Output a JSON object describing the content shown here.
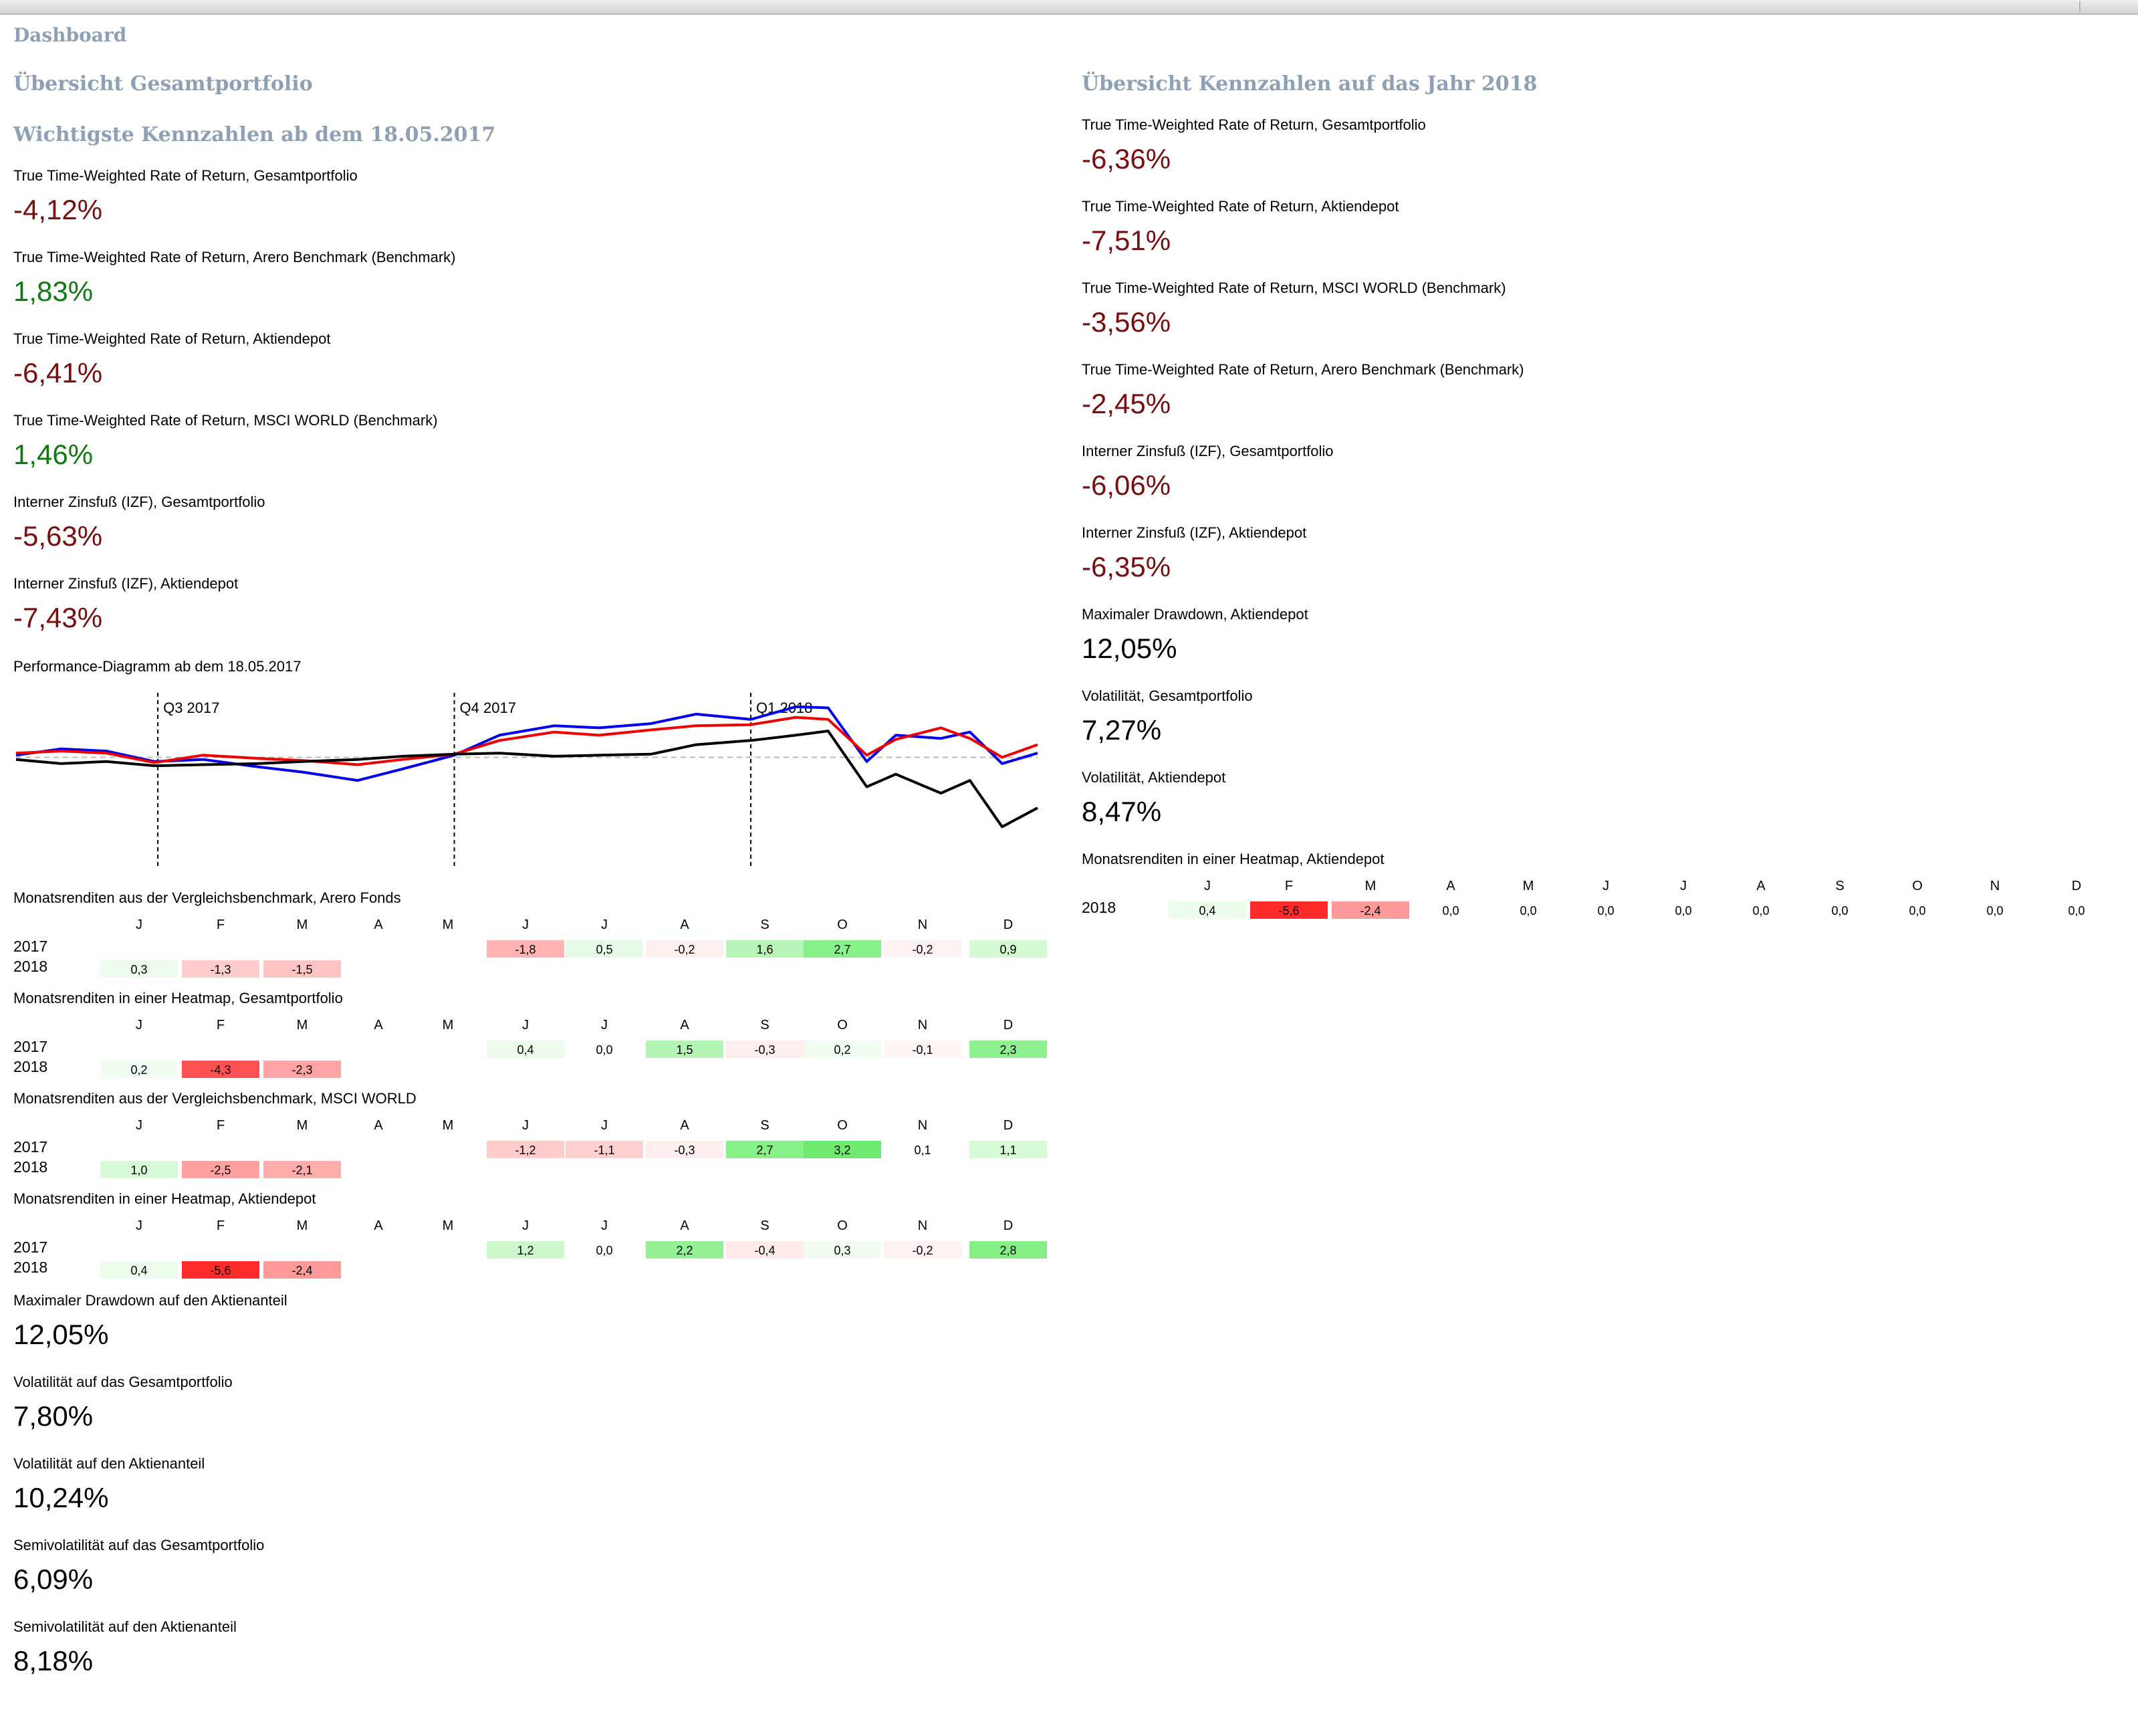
{
  "title": "Dashboard",
  "left": {
    "section_title": "Übersicht Gesamtportfolio",
    "subsection_title": "Wichtigste Kennzahlen ab dem 18.05.2017",
    "kpis": [
      {
        "label": "True Time-Weighted Rate of Return, Gesamtportfolio",
        "value": "-4,12%",
        "tone": "neg"
      },
      {
        "label": "True Time-Weighted Rate of Return, Arero Benchmark (Benchmark)",
        "value": "1,83%",
        "tone": "pos"
      },
      {
        "label": "True Time-Weighted Rate of Return, Aktiendepot",
        "value": "-6,41%",
        "tone": "neg"
      },
      {
        "label": "True Time-Weighted Rate of Return, MSCI WORLD (Benchmark)",
        "value": "1,46%",
        "tone": "pos"
      },
      {
        "label": "Interner Zinsfuß (IZF), Gesamtportfolio",
        "value": "-5,63%",
        "tone": "neg"
      },
      {
        "label": "Interner Zinsfuß (IZF), Aktiendepot",
        "value": "-7,43%",
        "tone": "neg"
      }
    ],
    "chart_title": "Performance-Diagramm ab dem 18.05.2017",
    "bottom_kpis": [
      {
        "label": "Maximaler Drawdown auf den Aktienanteil",
        "value": "12,05%",
        "tone": "neu"
      },
      {
        "label": "Volatilität auf das Gesamtportfolio",
        "value": "7,80%",
        "tone": "neu"
      },
      {
        "label": "Volatilität auf den Aktienanteil",
        "value": "10,24%",
        "tone": "neu"
      },
      {
        "label": "Semivolatilität auf das Gesamtportfolio",
        "value": "6,09%",
        "tone": "neu"
      },
      {
        "label": "Semivolatilität auf den Aktienanteil",
        "value": "8,18%",
        "tone": "neu"
      }
    ]
  },
  "right": {
    "section_title": "Übersicht Kennzahlen auf das Jahr 2018",
    "kpis": [
      {
        "label": "True Time-Weighted Rate of Return, Gesamtportfolio",
        "value": "-6,36%",
        "tone": "neg"
      },
      {
        "label": "True Time-Weighted Rate of Return, Aktiendepot",
        "value": "-7,51%",
        "tone": "neg"
      },
      {
        "label": "True Time-Weighted Rate of Return, MSCI WORLD (Benchmark)",
        "value": "-3,56%",
        "tone": "neg"
      },
      {
        "label": "True Time-Weighted Rate of Return, Arero Benchmark (Benchmark)",
        "value": "-2,45%",
        "tone": "neg"
      },
      {
        "label": "Interner Zinsfuß (IZF), Gesamtportfolio",
        "value": "-6,06%",
        "tone": "neg"
      },
      {
        "label": "Interner Zinsfuß (IZF), Aktiendepot",
        "value": "-6,35%",
        "tone": "neg"
      },
      {
        "label": "Maximaler Drawdown, Aktiendepot",
        "value": "12,05%",
        "tone": "neu"
      },
      {
        "label": "Volatilität, Gesamtportfolio",
        "value": "7,27%",
        "tone": "neu"
      },
      {
        "label": "Volatilität, Aktiendepot",
        "value": "8,47%",
        "tone": "neu"
      }
    ],
    "heatmap": {
      "title": "Monatsrenditen in einer Heatmap, Aktiendepot",
      "year": "2018",
      "values": [
        "0,4",
        "-5,6",
        "-2,4",
        "0,0",
        "0,0",
        "0,0",
        "0,0",
        "0,0",
        "0,0",
        "0,0",
        "0,0",
        "0,0"
      ],
      "colors": [
        "#ecfdec",
        "#ff2a2a",
        "#ff9a9a",
        "",
        "",
        "",
        "",
        "",
        "",
        "",
        "",
        ""
      ]
    }
  },
  "months": [
    "J",
    "F",
    "M",
    "A",
    "M",
    "J",
    "J",
    "A",
    "S",
    "O",
    "N",
    "D"
  ],
  "heatmaps": [
    {
      "title": "Monatsrenditen aus der Vergleichsbenchmark, Arero Fonds",
      "rows": [
        {
          "year": "2017",
          "values": [
            "",
            "",
            "",
            "",
            "",
            "-1,8",
            "0,5",
            "-0,2",
            "1,6",
            "2,7",
            "-0,2",
            "0,9"
          ],
          "colors": [
            "",
            "",
            "",
            "",
            "",
            "#ffb3b3",
            "#e6fbe6",
            "#fff0f0",
            "#b8f5b8",
            "#88f088",
            "#fff2f2",
            "#d4fad4"
          ]
        },
        {
          "year": "2018",
          "values": [
            "0,3",
            "-1,3",
            "-1,5",
            "",
            "",
            "",
            "",
            "",
            "",
            "",
            "",
            ""
          ],
          "colors": [
            "#eefcee",
            "#ffcccc",
            "#ffc4c4",
            "",
            "",
            "",
            "",
            "",
            "",
            "",
            "",
            ""
          ]
        }
      ]
    },
    {
      "title": "Monatsrenditen in einer Heatmap, Gesamtportfolio",
      "rows": [
        {
          "year": "2017",
          "values": [
            "",
            "",
            "",
            "",
            "",
            "0,4",
            "0,0",
            "1,5",
            "-0,3",
            "0,2",
            "-0,1",
            "2,3"
          ],
          "colors": [
            "",
            "",
            "",
            "",
            "",
            "#edfced",
            "",
            "#b4f4b4",
            "#ffeeee",
            "#f2fdf2",
            "#fff5f5",
            "#8ef08e"
          ]
        },
        {
          "year": "2018",
          "values": [
            "0,2",
            "-4,3",
            "-2,3",
            " ",
            " ",
            " ",
            " ",
            " ",
            " ",
            " ",
            " ",
            " "
          ],
          "colors": [
            "#f2fdf2",
            "#ff5252",
            "#ffa4a4",
            "",
            "",
            "",
            "",
            "",
            "",
            "",
            "",
            ""
          ]
        }
      ]
    },
    {
      "title": "Monatsrenditen aus der Vergleichsbenchmark, MSCI WORLD",
      "rows": [
        {
          "year": "2017",
          "values": [
            "",
            "",
            "",
            "",
            "",
            "-1,2",
            "-1,1",
            "-0,3",
            "2,7",
            "3,2",
            "0,1",
            "1,1"
          ],
          "colors": [
            "",
            "",
            "",
            "",
            "",
            "#ffcccc",
            "#ffd0d0",
            "#ffeeee",
            "#88f088",
            "#6fea6f",
            "",
            "#d8fad8"
          ]
        },
        {
          "year": "2018",
          "values": [
            "1,0",
            "-2,5",
            "-2,1",
            "",
            "",
            "",
            "",
            "",
            "",
            "",
            "",
            ""
          ],
          "colors": [
            "#d8fad8",
            "#ffa0a0",
            "#ffacac",
            "",
            "",
            "",
            "",
            "",
            "",
            "",
            "",
            ""
          ]
        }
      ]
    },
    {
      "title": "Monatsrenditen in einer Heatmap, Aktiendepot",
      "rows": [
        {
          "year": "2017",
          "values": [
            "",
            "",
            "",
            "",
            "",
            "1,2",
            "0,0",
            "2,2",
            "-0,4",
            "0,3",
            "-0,2",
            "2,8"
          ],
          "colors": [
            "",
            "",
            "",
            "",
            "",
            "#ccf8cc",
            "",
            "#94f094",
            "#ffeaea",
            "#f0fcf0",
            "#fff2f2",
            "#86ef86"
          ]
        },
        {
          "year": "2018",
          "values": [
            "0,4",
            "-5,6",
            "-2,4",
            "",
            "",
            "",
            "",
            "",
            "",
            "",
            "",
            ""
          ],
          "colors": [
            "#ecfdec",
            "#ff2a2a",
            "#ff9a9a",
            "",
            "",
            "",
            "",
            "",
            "",
            "",
            "",
            ""
          ]
        }
      ]
    }
  ],
  "chart_data": {
    "type": "line",
    "title": "Performance-Diagramm ab dem 18.05.2017",
    "x_range": [
      "2017-05-18",
      "2018-03-31"
    ],
    "quarter_markers": [
      {
        "label": "Q3 2017",
        "date": "2017-07-01"
      },
      {
        "label": "Q4 2017",
        "date": "2017-10-01"
      },
      {
        "label": "Q1 2018",
        "date": "2018-01-01"
      }
    ],
    "ylim": [
      -10,
      6
    ],
    "baseline": 0,
    "series": [
      {
        "color": "#0000ee",
        "x": [
          "2017-05-18",
          "2017-06-01",
          "2017-06-15",
          "2017-06-30",
          "2017-07-15",
          "2017-08-01",
          "2017-08-15",
          "2017-09-01",
          "2017-09-15",
          "2017-10-01",
          "2017-10-15",
          "2017-11-01",
          "2017-11-15",
          "2017-12-01",
          "2017-12-15",
          "2018-01-01",
          "2018-01-15",
          "2018-01-25",
          "2018-02-06",
          "2018-02-15",
          "2018-03-01",
          "2018-03-10",
          "2018-03-20",
          "2018-03-31"
        ],
        "y": [
          0.2,
          0.8,
          0.6,
          -0.4,
          -0.2,
          -0.9,
          -1.4,
          -2.2,
          -1.1,
          0.2,
          2.1,
          3.0,
          2.8,
          3.2,
          4.1,
          3.6,
          4.8,
          4.7,
          -0.4,
          2.1,
          1.8,
          2.4,
          -0.6,
          0.4
        ]
      },
      {
        "color": "#ee0000",
        "x": [
          "2017-05-18",
          "2017-06-01",
          "2017-06-15",
          "2017-06-30",
          "2017-07-15",
          "2017-08-01",
          "2017-08-15",
          "2017-09-01",
          "2017-09-15",
          "2017-10-01",
          "2017-10-15",
          "2017-11-01",
          "2017-11-15",
          "2017-12-01",
          "2017-12-15",
          "2018-01-01",
          "2018-01-15",
          "2018-01-25",
          "2018-02-06",
          "2018-02-15",
          "2018-03-01",
          "2018-03-10",
          "2018-03-20",
          "2018-03-31"
        ],
        "y": [
          0.4,
          0.6,
          0.4,
          -0.5,
          0.2,
          -0.1,
          -0.3,
          -0.7,
          -0.2,
          0.3,
          1.6,
          2.4,
          2.1,
          2.6,
          3.0,
          3.1,
          3.8,
          3.6,
          0.2,
          1.7,
          2.8,
          1.8,
          0.0,
          1.2
        ]
      },
      {
        "color": "#000000",
        "x": [
          "2017-05-18",
          "2017-06-01",
          "2017-06-15",
          "2017-06-30",
          "2017-07-15",
          "2017-08-01",
          "2017-08-15",
          "2017-09-01",
          "2017-09-15",
          "2017-10-01",
          "2017-10-15",
          "2017-11-01",
          "2017-11-15",
          "2017-12-01",
          "2017-12-15",
          "2018-01-01",
          "2018-01-15",
          "2018-01-25",
          "2018-02-06",
          "2018-02-15",
          "2018-03-01",
          "2018-03-10",
          "2018-03-20",
          "2018-03-31"
        ],
        "y": [
          -0.2,
          -0.6,
          -0.4,
          -0.8,
          -0.7,
          -0.6,
          -0.4,
          -0.2,
          0.1,
          0.3,
          0.4,
          0.1,
          0.2,
          0.3,
          1.2,
          1.6,
          2.1,
          2.5,
          -2.8,
          -1.6,
          -3.4,
          -2.2,
          -6.6,
          -4.8
        ]
      }
    ]
  }
}
